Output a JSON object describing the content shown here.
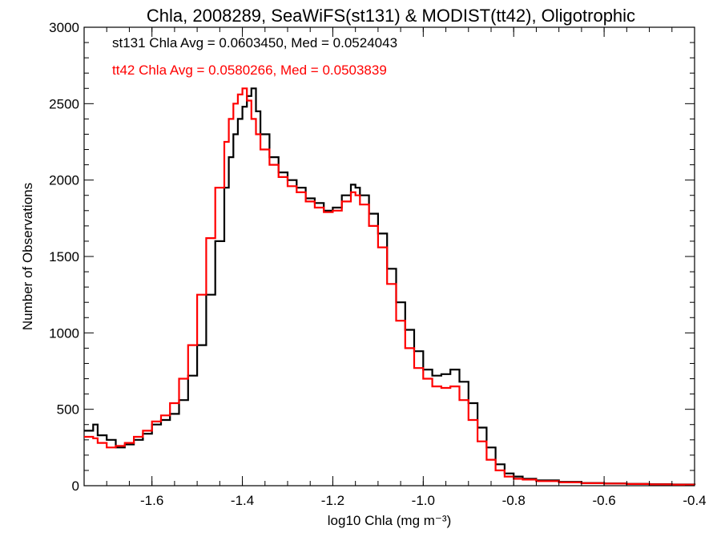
{
  "chart_data": {
    "type": "line",
    "title": "Chla, 2008289, SeaWiFS(st131) & MODIST(tt42), Oligotrophic",
    "xlabel": "log10 Chla (mg m⁻³)",
    "ylabel": "Number of Observations",
    "xlim": [
      -1.75,
      -0.4
    ],
    "ylim": [
      0,
      3000
    ],
    "x_ticks": [
      "-1.6",
      "-1.4",
      "-1.2",
      "-1.0",
      "-0.8",
      "-0.6",
      "-0.4"
    ],
    "y_ticks": [
      "0",
      "500",
      "1000",
      "1500",
      "2000",
      "2500",
      "3000"
    ],
    "grid": false,
    "annotations": [
      {
        "text": "st131 Chla Avg = 0.0603450, Med = 0.0524043",
        "color": "#000000"
      },
      {
        "text": "tt42 Chla Avg = 0.0580266, Med = 0.0503839",
        "color": "#ff0000"
      }
    ],
    "series": [
      {
        "color": "#000000",
        "x": [
          -1.75,
          -1.73,
          -1.72,
          -1.7,
          -1.68,
          -1.66,
          -1.64,
          -1.62,
          -1.6,
          -1.58,
          -1.56,
          -1.54,
          -1.52,
          -1.5,
          -1.48,
          -1.46,
          -1.44,
          -1.43,
          -1.42,
          -1.41,
          -1.4,
          -1.39,
          -1.38,
          -1.37,
          -1.36,
          -1.34,
          -1.32,
          -1.3,
          -1.28,
          -1.26,
          -1.24,
          -1.22,
          -1.2,
          -1.18,
          -1.16,
          -1.15,
          -1.14,
          -1.12,
          -1.1,
          -1.08,
          -1.06,
          -1.04,
          -1.02,
          -1.0,
          -0.98,
          -0.96,
          -0.94,
          -0.92,
          -0.9,
          -0.88,
          -0.86,
          -0.84,
          -0.82,
          -0.8,
          -0.78,
          -0.75,
          -0.7,
          -0.65,
          -0.6,
          -0.55,
          -0.5,
          -0.45,
          -0.4
        ],
        "y": [
          360,
          400,
          330,
          300,
          250,
          270,
          300,
          340,
          400,
          430,
          470,
          560,
          720,
          920,
          1250,
          1600,
          1950,
          2150,
          2300,
          2400,
          2480,
          2550,
          2600,
          2450,
          2300,
          2150,
          2050,
          2000,
          1950,
          1880,
          1850,
          1800,
          1820,
          1900,
          1970,
          1950,
          1900,
          1780,
          1650,
          1420,
          1200,
          1020,
          880,
          760,
          720,
          730,
          760,
          680,
          540,
          380,
          250,
          140,
          80,
          60,
          45,
          35,
          25,
          18,
          15,
          12,
          10,
          8,
          5
        ]
      },
      {
        "color": "#ff0000",
        "x": [
          -1.75,
          -1.73,
          -1.72,
          -1.7,
          -1.68,
          -1.66,
          -1.64,
          -1.62,
          -1.6,
          -1.58,
          -1.56,
          -1.54,
          -1.52,
          -1.5,
          -1.48,
          -1.46,
          -1.44,
          -1.43,
          -1.42,
          -1.41,
          -1.4,
          -1.39,
          -1.38,
          -1.37,
          -1.36,
          -1.34,
          -1.32,
          -1.3,
          -1.28,
          -1.26,
          -1.24,
          -1.22,
          -1.2,
          -1.18,
          -1.16,
          -1.15,
          -1.14,
          -1.12,
          -1.1,
          -1.08,
          -1.06,
          -1.04,
          -1.02,
          -1.0,
          -0.98,
          -0.96,
          -0.94,
          -0.92,
          -0.9,
          -0.88,
          -0.86,
          -0.84,
          -0.82,
          -0.8,
          -0.78,
          -0.75,
          -0.7,
          -0.65,
          -0.6,
          -0.55,
          -0.5,
          -0.45,
          -0.4
        ],
        "y": [
          320,
          310,
          280,
          250,
          260,
          280,
          320,
          360,
          420,
          460,
          540,
          700,
          920,
          1250,
          1620,
          1950,
          2250,
          2400,
          2500,
          2560,
          2600,
          2520,
          2400,
          2300,
          2200,
          2100,
          2020,
          1960,
          1920,
          1860,
          1820,
          1790,
          1800,
          1860,
          1920,
          1900,
          1840,
          1700,
          1560,
          1320,
          1080,
          900,
          770,
          700,
          650,
          640,
          650,
          560,
          430,
          290,
          170,
          100,
          60,
          45,
          40,
          30,
          22,
          16,
          14,
          11,
          9,
          7,
          5
        ]
      }
    ]
  }
}
